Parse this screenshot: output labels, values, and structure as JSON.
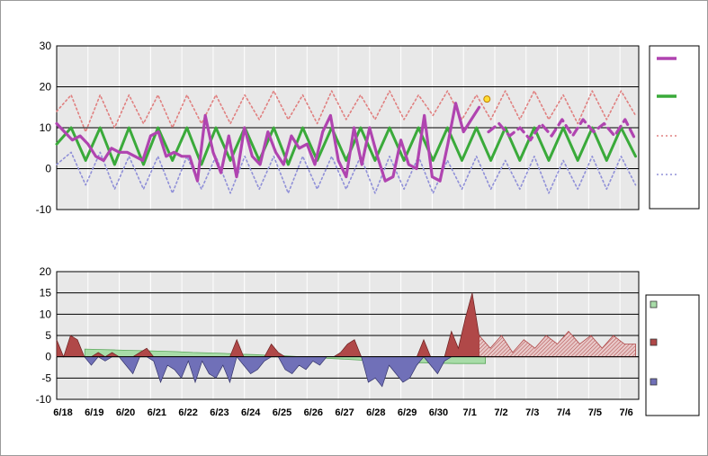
{
  "chart_data": [
    {
      "type": "line",
      "x_labels": [
        "6/18",
        "6/19",
        "6/20",
        "6/21",
        "6/22",
        "6/23",
        "6/24",
        "6/25",
        "6/26",
        "6/27",
        "6/28",
        "6/29",
        "6/30",
        "7/1",
        "7/2",
        "7/3",
        "7/4",
        "7/5",
        "7/6"
      ],
      "ylim": [
        -10,
        30
      ],
      "yticks": [
        -10,
        0,
        10,
        20,
        30
      ],
      "grid": true,
      "legend": "right",
      "series": [
        {
          "key": "observed",
          "style": "solid",
          "color": "#b044b0",
          "values": [
            11,
            9,
            7,
            8,
            6,
            3,
            2,
            5,
            4,
            4,
            3,
            2,
            8,
            9,
            3,
            4,
            3,
            3,
            -3,
            13,
            4,
            -1,
            8,
            -2,
            10,
            3,
            1,
            9,
            4,
            1,
            8,
            5,
            6,
            1,
            9,
            13,
            2,
            -2,
            10,
            1,
            10,
            3,
            -3,
            -2,
            7,
            1,
            0,
            13,
            -2,
            -3,
            6,
            16,
            9,
            12,
            15
          ]
        },
        {
          "key": "forecast",
          "style": "dashed",
          "color": "#b044b0",
          "values": [
            9,
            11,
            8,
            10,
            7,
            11,
            8,
            12,
            8,
            12,
            9,
            11,
            8,
            12,
            7
          ]
        },
        {
          "key": "normal",
          "style": "solid",
          "color": "#3aaa3a",
          "values": [
            6,
            10,
            2,
            10,
            1,
            10,
            1,
            10,
            2,
            10,
            1,
            10,
            2,
            10,
            2,
            10,
            1,
            10,
            2,
            10,
            2,
            10,
            2,
            10,
            2,
            10,
            2,
            10,
            2,
            10,
            2,
            10,
            2,
            10,
            2,
            10,
            2,
            10,
            2,
            10,
            3
          ]
        },
        {
          "key": "record-high",
          "style": "dotted",
          "color": "#e08080",
          "values": [
            14,
            18,
            9,
            18,
            10,
            18,
            11,
            18,
            10,
            18,
            11,
            18,
            11,
            18,
            12,
            19,
            12,
            18,
            11,
            19,
            12,
            18,
            12,
            19,
            12,
            18,
            13,
            19,
            12,
            18,
            12,
            19,
            12,
            19,
            12,
            18,
            11,
            19,
            12,
            19,
            13
          ]
        },
        {
          "key": "record-low",
          "style": "dotted",
          "color": "#9090d8",
          "values": [
            1,
            4,
            -4,
            4,
            -5,
            3,
            -5,
            3,
            -6,
            3,
            -5,
            3,
            -6,
            3,
            -5,
            3,
            -6,
            3,
            -5,
            3,
            -5,
            3,
            -6,
            3,
            -5,
            3,
            -6,
            2,
            -5,
            3,
            -5,
            2,
            -5,
            3,
            -6,
            2,
            -5,
            3,
            -5,
            3,
            -4
          ]
        }
      ],
      "current_marker": {
        "x_index": 13.75,
        "value": 17
      }
    },
    {
      "type": "area",
      "x_labels": [
        "6/18",
        "6/19",
        "6/20",
        "6/21",
        "6/22",
        "6/23",
        "6/24",
        "6/25",
        "6/26",
        "6/27",
        "6/28",
        "6/29",
        "6/30",
        "7/1",
        "7/2",
        "7/3",
        "7/4",
        "7/5",
        "7/6"
      ],
      "ylim": [
        -10,
        20
      ],
      "yticks": [
        -10,
        -5,
        0,
        5,
        10,
        15,
        20
      ],
      "grid": true,
      "legend": "right",
      "series": [
        {
          "key": "cumulative",
          "color": "#a8dca8",
          "values": [
            1.8,
            1.7,
            1.6,
            1.5,
            1.4,
            1.3,
            1.2,
            1.0,
            0.9,
            0.8,
            0.6,
            0.5,
            0.3,
            0.2,
            0.0,
            -0.2,
            -0.4,
            -0.6,
            -0.8,
            -1.0,
            -1.2,
            -1.4,
            -1.4,
            -1.5,
            -1.6,
            -1.6,
            -1.6
          ]
        },
        {
          "key": "departure",
          "colors": {
            "above": "#b04848",
            "below": "#7070b8"
          },
          "values": [
            4,
            0,
            5,
            4,
            0,
            -2,
            1,
            -1,
            1,
            0,
            -2,
            -4,
            1,
            2,
            -1,
            -6,
            -2,
            -3,
            -5,
            -1,
            -6,
            -1,
            -4,
            -5,
            -2,
            -6,
            4,
            -2,
            -4,
            -3,
            -1,
            3,
            1,
            -3,
            -4,
            -2,
            -3,
            -1,
            -2,
            0,
            0,
            1,
            3,
            4,
            0,
            -6,
            -5,
            -7,
            -2,
            -4,
            -6,
            -5,
            -2,
            4,
            -2,
            -4,
            -1,
            6,
            2,
            9,
            15,
            5
          ]
        },
        {
          "key": "forecast-departure",
          "colors": {
            "above": "#b04848"
          },
          "values": [
            5,
            2,
            5,
            1,
            4,
            2,
            5,
            3,
            6,
            3,
            5,
            2,
            5,
            3,
            3
          ]
        }
      ]
    }
  ]
}
